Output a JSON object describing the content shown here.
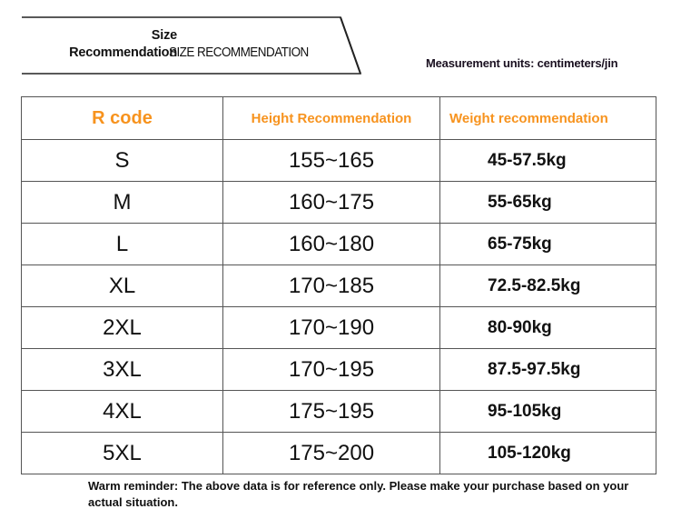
{
  "banner": {
    "title_line1": "Size",
    "title_line2": "Recommendation",
    "subtitle": "SIZE RECOMMENDATION"
  },
  "units": "Measurement units: centimeters/jin",
  "table": {
    "headers": [
      "R code",
      "Height Recommendation",
      "Weight recommendation"
    ],
    "rows": [
      {
        "size": "S",
        "height": "155~165",
        "weight": "45-57.5kg"
      },
      {
        "size": "M",
        "height": "160~175",
        "weight": "55-65kg"
      },
      {
        "size": "L",
        "height": "160~180",
        "weight": "65-75kg"
      },
      {
        "size": "XL",
        "height": "170~185",
        "weight": "72.5-82.5kg"
      },
      {
        "size": "2XL",
        "height": "170~190",
        "weight": "80-90kg"
      },
      {
        "size": "3XL",
        "height": "170~195",
        "weight": "87.5-97.5kg"
      },
      {
        "size": "4XL",
        "height": "175~195",
        "weight": "95-105kg"
      },
      {
        "size": "5XL",
        "height": "175~200",
        "weight": "105-120kg"
      }
    ]
  },
  "note": "Warm reminder: The above data is for reference only. Please make your purchase based on your actual situation.",
  "colors": {
    "header": "#f7931e",
    "border": "#555555"
  }
}
